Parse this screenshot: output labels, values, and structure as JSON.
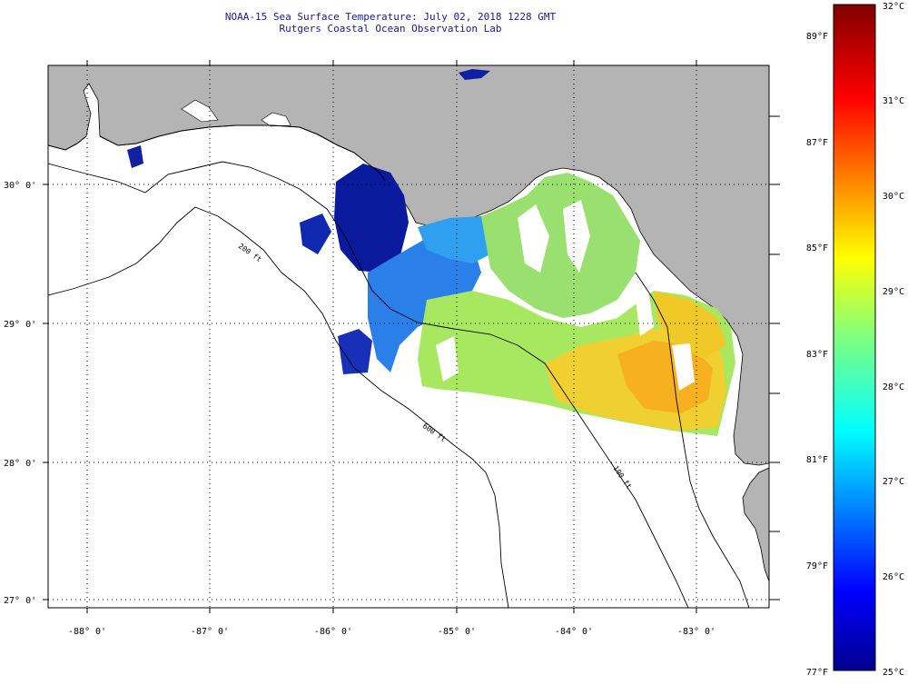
{
  "header": {
    "title": "NOAA-15 Sea Surface Temperature:  July 02, 2018 1228 GMT",
    "subtitle": "Rutgers Coastal Ocean Observation Lab"
  },
  "map": {
    "lon_labels": [
      "-88° 0'",
      "-87° 0'",
      "-86° 0'",
      "-85° 0'",
      "-84° 0'",
      "-83° 0'"
    ],
    "lat_labels": [
      "30° 0'",
      "29° 0'",
      "28° 0'",
      "27° 0'"
    ],
    "contour_labels": [
      "200 ft",
      "600 ft",
      "100 ft"
    ],
    "colors": {
      "land": "#b4b4b4",
      "ocean": "#ffffff",
      "title_text": "#1a1a8c"
    }
  },
  "colorbar": {
    "celsius_labels": [
      "32°C",
      "31°C",
      "30°C",
      "29°C",
      "28°C",
      "27°C",
      "26°C",
      "25°C"
    ],
    "fahrenheit_labels": [
      "89°F",
      "87°F",
      "85°F",
      "83°F",
      "81°F",
      "79°F",
      "77°F"
    ],
    "palette": "jet"
  }
}
